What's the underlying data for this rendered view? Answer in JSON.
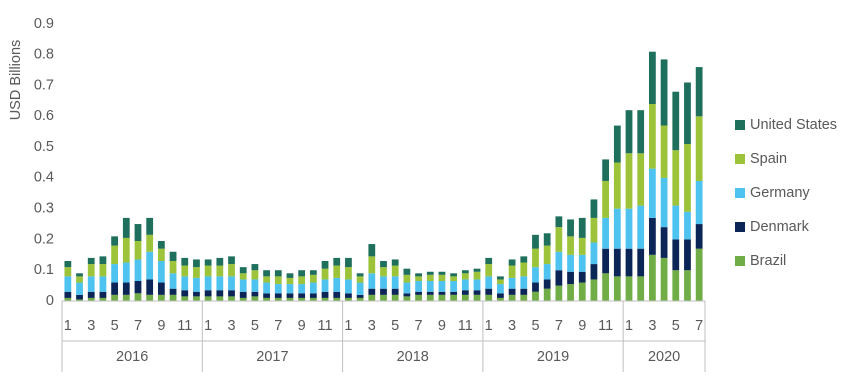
{
  "chart_data": {
    "type": "stacked_bar",
    "y_label": "USD Billions",
    "categories": [
      "1",
      null,
      "3",
      null,
      "5",
      null,
      "7",
      null,
      "9",
      null,
      "11",
      null,
      "1",
      null,
      "3",
      null,
      "5",
      null,
      "7",
      null,
      "9",
      null,
      "11",
      null,
      "1",
      null,
      "3",
      null,
      "5",
      null,
      "7",
      null,
      "9",
      null,
      "11",
      null,
      "1",
      null,
      "3",
      null,
      "5",
      null,
      "7",
      null,
      "9",
      null,
      "11",
      null,
      "1",
      null,
      "3",
      null,
      "5",
      null,
      "7"
    ],
    "category_groups": [
      "2016",
      "2017",
      "2018",
      "2019",
      "2020"
    ],
    "ylim": [
      0,
      0.9
    ],
    "yticks": [
      0,
      0.1,
      0.2,
      0.3,
      0.4,
      0.5,
      0.6,
      0.7,
      0.8,
      0.9
    ],
    "grid": false,
    "legend": "right",
    "series": [
      {
        "name": "Brazil",
        "color": "#70ad47",
        "values": [
          0.01,
          0.005,
          0.01,
          0.01,
          0.02,
          0.02,
          0.025,
          0.02,
          0.02,
          0.02,
          0.015,
          0.015,
          0.015,
          0.015,
          0.015,
          0.01,
          0.015,
          0.01,
          0.01,
          0.01,
          0.01,
          0.01,
          0.01,
          0.01,
          0.01,
          0.01,
          0.02,
          0.02,
          0.02,
          0.015,
          0.02,
          0.02,
          0.02,
          0.02,
          0.02,
          0.02,
          0.02,
          0.01,
          0.02,
          0.02,
          0.03,
          0.04,
          0.05,
          0.055,
          0.06,
          0.07,
          0.09,
          0.08,
          0.08,
          0.08,
          0.15,
          0.14,
          0.1,
          0.1,
          0.17
        ]
      },
      {
        "name": "Denmark",
        "color": "#0c2557",
        "values": [
          0.02,
          0.015,
          0.02,
          0.02,
          0.04,
          0.04,
          0.04,
          0.05,
          0.04,
          0.02,
          0.02,
          0.015,
          0.02,
          0.02,
          0.02,
          0.02,
          0.015,
          0.015,
          0.015,
          0.015,
          0.015,
          0.015,
          0.02,
          0.02,
          0.015,
          0.01,
          0.02,
          0.02,
          0.02,
          0.01,
          0.01,
          0.01,
          0.01,
          0.01,
          0.015,
          0.015,
          0.02,
          0.015,
          0.02,
          0.02,
          0.03,
          0.03,
          0.05,
          0.04,
          0.035,
          0.05,
          0.08,
          0.09,
          0.09,
          0.09,
          0.12,
          0.1,
          0.1,
          0.1,
          0.08
        ]
      },
      {
        "name": "Germany",
        "color": "#4fc3f0",
        "values": [
          0.05,
          0.04,
          0.05,
          0.05,
          0.06,
          0.065,
          0.07,
          0.09,
          0.07,
          0.05,
          0.045,
          0.045,
          0.045,
          0.045,
          0.045,
          0.04,
          0.04,
          0.035,
          0.03,
          0.03,
          0.03,
          0.035,
          0.04,
          0.045,
          0.045,
          0.04,
          0.05,
          0.04,
          0.04,
          0.035,
          0.035,
          0.035,
          0.035,
          0.035,
          0.035,
          0.035,
          0.04,
          0.03,
          0.035,
          0.04,
          0.05,
          0.05,
          0.06,
          0.055,
          0.055,
          0.07,
          0.1,
          0.13,
          0.13,
          0.14,
          0.16,
          0.16,
          0.11,
          0.09,
          0.14
        ]
      },
      {
        "name": "Spain",
        "color": "#9dc33b",
        "values": [
          0.03,
          0.02,
          0.04,
          0.04,
          0.06,
          0.08,
          0.06,
          0.055,
          0.04,
          0.04,
          0.035,
          0.035,
          0.035,
          0.035,
          0.04,
          0.02,
          0.03,
          0.02,
          0.025,
          0.02,
          0.025,
          0.025,
          0.035,
          0.04,
          0.04,
          0.02,
          0.055,
          0.03,
          0.035,
          0.025,
          0.015,
          0.02,
          0.02,
          0.015,
          0.02,
          0.025,
          0.04,
          0.015,
          0.04,
          0.045,
          0.06,
          0.06,
          0.08,
          0.06,
          0.055,
          0.08,
          0.12,
          0.15,
          0.18,
          0.17,
          0.21,
          0.17,
          0.18,
          0.22,
          0.21
        ]
      },
      {
        "name": "United States",
        "color": "#1e6f5c",
        "values": [
          0.02,
          0.01,
          0.02,
          0.025,
          0.03,
          0.065,
          0.055,
          0.055,
          0.025,
          0.03,
          0.025,
          0.025,
          0.02,
          0.025,
          0.025,
          0.02,
          0.02,
          0.02,
          0.02,
          0.015,
          0.02,
          0.015,
          0.025,
          0.025,
          0.03,
          0.01,
          0.04,
          0.02,
          0.02,
          0.02,
          0.01,
          0.01,
          0.01,
          0.01,
          0.01,
          0.01,
          0.02,
          0.01,
          0.02,
          0.02,
          0.045,
          0.04,
          0.035,
          0.055,
          0.065,
          0.06,
          0.07,
          0.12,
          0.14,
          0.14,
          0.17,
          0.215,
          0.19,
          0.2,
          0.16
        ]
      }
    ]
  }
}
